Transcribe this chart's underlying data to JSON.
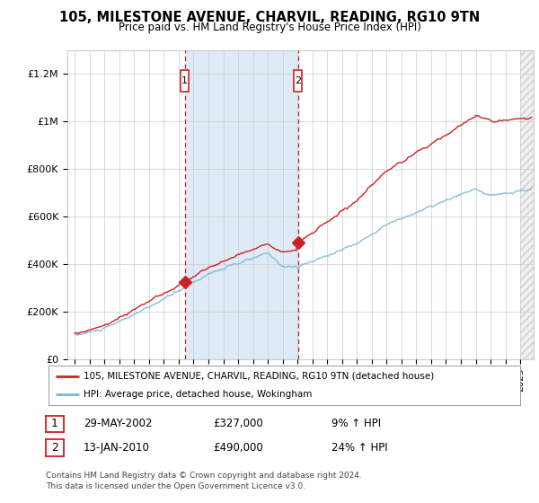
{
  "title": "105, MILESTONE AVENUE, CHARVIL, READING, RG10 9TN",
  "subtitle": "Price paid vs. HM Land Registry's House Price Index (HPI)",
  "legend_line1": "105, MILESTONE AVENUE, CHARVIL, READING, RG10 9TN (detached house)",
  "legend_line2": "HPI: Average price, detached house, Wokingham",
  "footer": "Contains HM Land Registry data © Crown copyright and database right 2024.\nThis data is licensed under the Open Government Licence v3.0.",
  "sale1_date": "29-MAY-2002",
  "sale1_price": 327000,
  "sale2_date": "13-JAN-2010",
  "sale2_price": 490000,
  "sale1_pct": "9% ↑ HPI",
  "sale2_pct": "24% ↑ HPI",
  "hpi_color": "#7ab6d9",
  "price_color": "#cc2222",
  "shade_color": "#deeaf5",
  "dashed_color": "#cc2222",
  "marker_color": "#cc2222",
  "box_edge_color": "#cc2222",
  "ylim": [
    0,
    1300000
  ],
  "yticks": [
    0,
    200000,
    400000,
    600000,
    800000,
    1000000,
    1200000
  ],
  "ytick_labels": [
    "£0",
    "£200K",
    "£400K",
    "£600K",
    "£800K",
    "£1M",
    "£1.2M"
  ],
  "grid_color": "#cccccc",
  "bg_color": "#ffffff",
  "sale1_year": 2002.41,
  "sale2_year": 2010.04,
  "xlim_left": 1994.5,
  "xlim_right": 2025.9
}
